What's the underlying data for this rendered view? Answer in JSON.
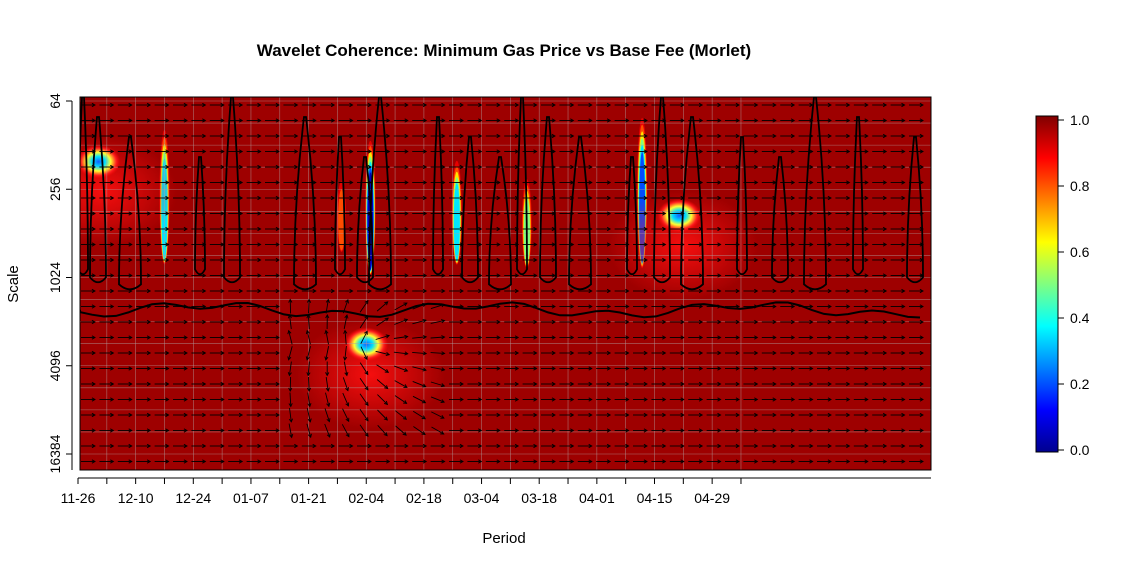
{
  "chart_data": {
    "type": "heatmap",
    "title": "Wavelet Coherence: Minimum Gas Price vs  Base Fee (Morlet)",
    "xlabel": "Period",
    "ylabel": "Scale",
    "x_tick_labels": [
      "11-26",
      "12-10",
      "12-24",
      "01-07",
      "01-21",
      "02-04",
      "02-18",
      "03-04",
      "03-18",
      "04-01",
      "04-15",
      "04-29"
    ],
    "y_tick_labels": [
      "64",
      "256",
      "1024",
      "4096",
      "16384"
    ],
    "y_scale": "log2",
    "ylim": [
      64,
      16384
    ],
    "colorbar": {
      "ticks": [
        "0.0",
        "0.2",
        "0.4",
        "0.6",
        "0.8",
        "1.0"
      ],
      "range": [
        0,
        1
      ],
      "colors": [
        "#00008f",
        "#0000ff",
        "#0080ff",
        "#00ffff",
        "#80ff80",
        "#ffff00",
        "#ff8000",
        "#ff0000",
        "#800000"
      ]
    },
    "background_coherence": 0.97,
    "grid": true,
    "features": [
      {
        "date": "12-17",
        "scale_top": 90,
        "scale_bottom": 850,
        "min_coherence": 0.3
      },
      {
        "date": "12-01",
        "scale_top": 120,
        "scale_bottom": 230,
        "min_coherence": 0.75
      },
      {
        "date": "01-29",
        "scale_top": 200,
        "scale_bottom": 700,
        "min_coherence": 0.7
      },
      {
        "date": "02-05",
        "scale_top": 110,
        "scale_bottom": 1000,
        "min_coherence": 0.05
      },
      {
        "date": "02-04",
        "scale_top": 2600,
        "scale_bottom": 3300,
        "min_coherence": 0.05
      },
      {
        "date": "02-26",
        "scale_top": 150,
        "scale_bottom": 850,
        "min_coherence": 0.3
      },
      {
        "date": "03-15",
        "scale_top": 200,
        "scale_bottom": 900,
        "min_coherence": 0.45
      },
      {
        "date": "04-12",
        "scale_top": 75,
        "scale_bottom": 900,
        "min_coherence": 0.2
      },
      {
        "date": "04-21",
        "scale_top": 250,
        "scale_bottom": 600,
        "min_coherence": 0.75
      }
    ]
  }
}
